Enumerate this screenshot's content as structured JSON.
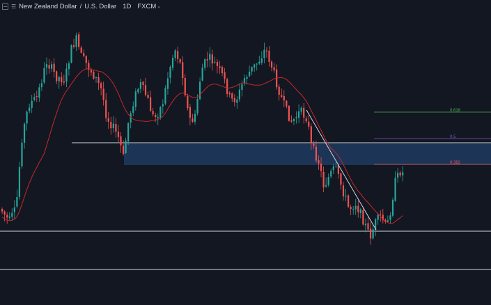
{
  "header": {
    "symbol_name": "New Zealand Dollar",
    "quote_name": "U.S. Dollar",
    "interval": "1D",
    "source": "FXCM"
  },
  "fib_levels": {
    "f618": "0.618",
    "f5": "0.5",
    "f382": "0.382"
  },
  "colors": {
    "background": "#131722",
    "bull": "#26a69a",
    "bear": "#ef5350",
    "moving_average": "#c62828",
    "zone": "#1f3a5f",
    "fib_618": "#4caf50",
    "fib_5": "#7e57c2",
    "fib_382": "#ef5350",
    "horizontal_line": "#d1d4dc"
  },
  "icons": [
    "collapse-icon",
    "symbol-menu-icon",
    "chevron-down-icon"
  ]
}
